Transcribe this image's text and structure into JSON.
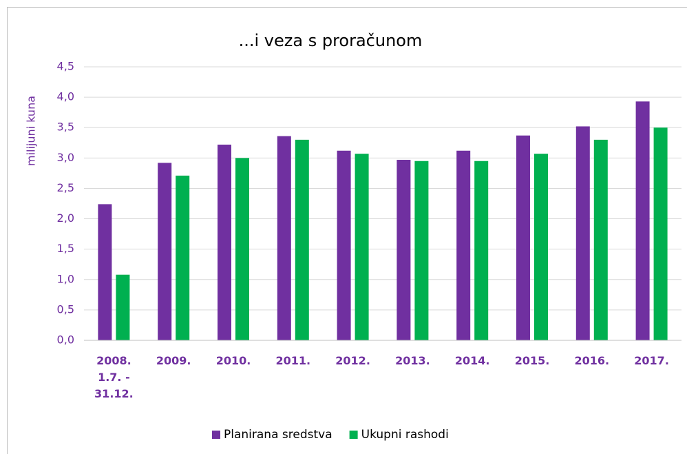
{
  "chart_data": {
    "type": "bar",
    "title": "...i veza s proračunom",
    "y_label": "milijuni kuna",
    "categories": [
      "2008.\n1.7. -\n31.12.",
      "2009.",
      "2010.",
      "2011.",
      "2012.",
      "2013.",
      "2014.",
      "2015.",
      "2016.",
      "2017."
    ],
    "series": [
      {
        "name": "Planirana sredstva",
        "color": "#7030a0",
        "values": [
          2.24,
          2.92,
          3.22,
          3.36,
          3.12,
          2.97,
          3.12,
          3.37,
          3.52,
          3.93
        ]
      },
      {
        "name": "Ukupni rashodi",
        "color": "#00b050",
        "values": [
          1.08,
          2.71,
          3.0,
          3.3,
          3.07,
          2.95,
          2.95,
          3.07,
          3.3,
          3.5
        ]
      }
    ],
    "ylim": [
      0,
      4.5
    ],
    "yticks": [
      {
        "value": 0,
        "label": "0,0"
      },
      {
        "value": 0.5,
        "label": "0,5"
      },
      {
        "value": 1,
        "label": "1,0"
      },
      {
        "value": 1.5,
        "label": "1,5"
      },
      {
        "value": 2,
        "label": "2,0"
      },
      {
        "value": 2.5,
        "label": "2,5"
      },
      {
        "value": 3,
        "label": "3,0"
      },
      {
        "value": 3.5,
        "label": "3,5"
      },
      {
        "value": 4,
        "label": "4,0"
      },
      {
        "value": 4.5,
        "label": "4,5"
      }
    ],
    "grid": true,
    "legend": "bottom"
  }
}
